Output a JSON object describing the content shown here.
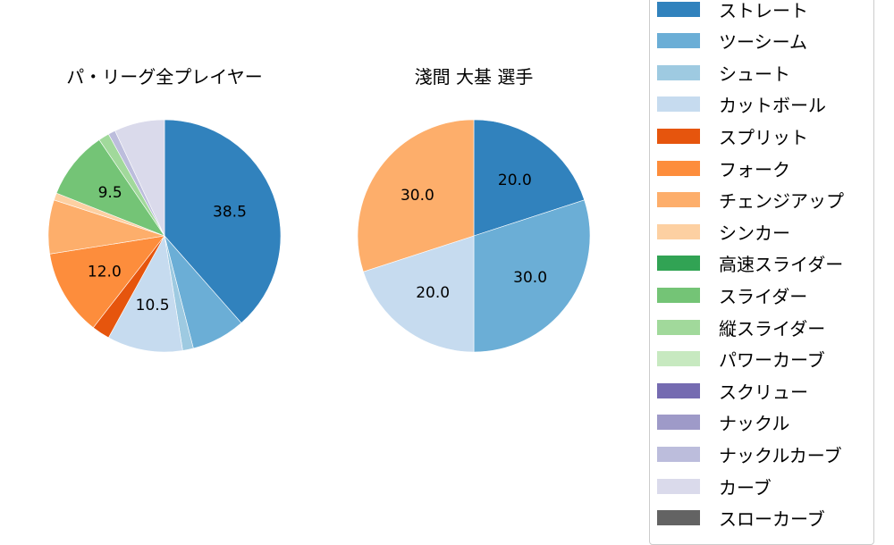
{
  "chart_data": [
    {
      "type": "pie",
      "title": "パ・リーグ全プレイヤー",
      "categories": [
        "ストレート",
        "ツーシーム",
        "シュート",
        "カットボール",
        "スプリット",
        "フォーク",
        "チェンジアップ",
        "シンカー",
        "スライダー",
        "縦スライダー",
        "ナックルカーブ",
        "カーブ"
      ],
      "values": [
        38.5,
        7.5,
        1.5,
        10.5,
        2.5,
        12.0,
        7.5,
        1.0,
        9.5,
        1.5,
        1.0,
        7.0
      ],
      "colors": [
        "#3182bd",
        "#6baed6",
        "#9ecae1",
        "#c6dbef",
        "#e6550d",
        "#fd8d3c",
        "#fdae6b",
        "#fdd0a2",
        "#74c476",
        "#a1d99b",
        "#bcbddc",
        "#dadaeb"
      ],
      "labels_shown": {
        "ストレート": "38.5",
        "カットボール": "10.5",
        "フォーク": "12.0",
        "スライダー": "9.5"
      },
      "start_angle": 90,
      "direction": "clockwise"
    },
    {
      "type": "pie",
      "title": "淺間 大基  選手",
      "categories": [
        "ストレート",
        "ツーシーム",
        "カットボール",
        "チェンジアップ"
      ],
      "values": [
        20.0,
        30.0,
        20.0,
        30.0
      ],
      "colors": [
        "#3182bd",
        "#6baed6",
        "#c6dbef",
        "#fdae6b"
      ],
      "labels_shown": {
        "ストレート": "20.0",
        "ツーシーム": "30.0",
        "カットボール": "20.0",
        "チェンジアップ": "30.0"
      },
      "start_angle": 90,
      "direction": "clockwise"
    }
  ],
  "titles": {
    "left": "パ・リーグ全プレイヤー",
    "right": "淺間 大基  選手"
  },
  "legend": [
    {
      "label": "ストレート",
      "color": "#3182bd"
    },
    {
      "label": "ツーシーム",
      "color": "#6baed6"
    },
    {
      "label": "シュート",
      "color": "#9ecae1"
    },
    {
      "label": "カットボール",
      "color": "#c6dbef"
    },
    {
      "label": "スプリット",
      "color": "#e6550d"
    },
    {
      "label": "フォーク",
      "color": "#fd8d3c"
    },
    {
      "label": "チェンジアップ",
      "color": "#fdae6b"
    },
    {
      "label": "シンカー",
      "color": "#fdd0a2"
    },
    {
      "label": "高速スライダー",
      "color": "#31a354"
    },
    {
      "label": "スライダー",
      "color": "#74c476"
    },
    {
      "label": "縦スライダー",
      "color": "#a1d99b"
    },
    {
      "label": "パワーカーブ",
      "color": "#c7e9c0"
    },
    {
      "label": "スクリュー",
      "color": "#756bb1"
    },
    {
      "label": "ナックル",
      "color": "#9e9ac8"
    },
    {
      "label": "ナックルカーブ",
      "color": "#bcbddc"
    },
    {
      "label": "カーブ",
      "color": "#dadaeb"
    },
    {
      "label": "スローカーブ",
      "color": "#636363"
    }
  ]
}
